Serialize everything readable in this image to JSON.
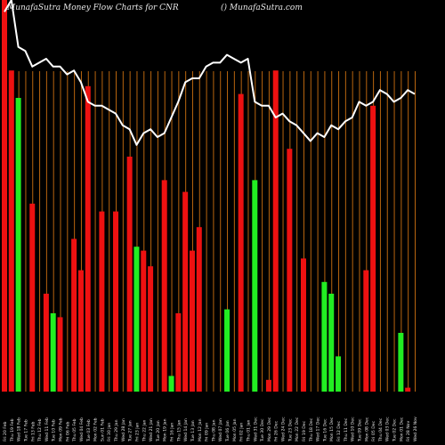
{
  "title": "MunafaSutra  Money Flow  Charts for CNR",
  "subtitle": "() MunafaSutra.com",
  "colors": {
    "background": "#000000",
    "up": "#22ee22",
    "down": "#ee1111",
    "grid": "#b8650f",
    "line": "#ffffff",
    "text": "#e6e6e6"
  },
  "chart_data": {
    "type": "bar",
    "ylim": [
      0,
      100
    ],
    "categories": [
      "Fri 20 Feb",
      "Thu 19 Feb",
      "Wed 18 Feb",
      "Tue 17 Feb",
      "Fri 13 Feb",
      "Thu 12 Feb",
      "Wed 11 Feb",
      "Tue 10 Feb",
      "Mon 09 Feb",
      "Fri 06 Feb",
      "Thu 05 Feb",
      "Wed 04 Feb",
      "Tue 03 Feb",
      "Mon 02 Feb",
      "Sun 01 Feb",
      "Fri 30 Jan",
      "Thu 29 Jan",
      "Wed 28 Jan",
      "Tue 27 Jan",
      "Fri 23 Jan",
      "Thu 22 Jan",
      "Wed 21 Jan",
      "Tue 20 Jan",
      "Mon 19 Jan",
      "Fri 16 Jan",
      "Thu 15 Jan",
      "Wed 14 Jan",
      "Tue 13 Jan",
      "Mon 12 Jan",
      "Fri 09 Jan",
      "Thu 08 Jan",
      "Wed 07 Jan",
      "Tue 06 Jan",
      "Mon 05 Jan",
      "Fri 02 Jan",
      "Thu 01 Jan",
      "Wed 31 Dec",
      "Tue 30 Dec",
      "Mon 29 Dec",
      "Fri 26 Dec",
      "Wed 24 Dec",
      "Tue 23 Dec",
      "Mon 22 Dec",
      "Fri 19 Dec",
      "Thu 18 Dec",
      "Wed 17 Dec",
      "Tue 16 Dec",
      "Mon 15 Dec",
      "Fri 12 Dec",
      "Thu 11 Dec",
      "Wed 10 Dec",
      "Tue 09 Dec",
      "Mon 08 Dec",
      "Fri 05 Dec",
      "Thu 04 Dec",
      "Wed 03 Dec",
      "Tue 02 Dec",
      "Mon 01 Dec",
      "Fri 28 Nov",
      "Wed 26 Nov"
    ],
    "series": [
      {
        "values": [
          100,
          82,
          75,
          0,
          48,
          0,
          25,
          20,
          19,
          0,
          39,
          31,
          78,
          0,
          46,
          0,
          46,
          0,
          60,
          37,
          36,
          32,
          0,
          54,
          4,
          20,
          51,
          36,
          42,
          0,
          0,
          0,
          21,
          0,
          76,
          0,
          54,
          0,
          3,
          82,
          0,
          62,
          0,
          34,
          0,
          0,
          28,
          25,
          9,
          0,
          0,
          0,
          31,
          73,
          0,
          0,
          0,
          15,
          1,
          0
        ],
        "colors": [
          "red",
          "red",
          "green",
          "green",
          "red",
          "red",
          "red",
          "green",
          "red",
          "red",
          "red",
          "red",
          "red",
          "red",
          "red",
          "red",
          "red",
          "red",
          "red",
          "green",
          "red",
          "red",
          "green",
          "red",
          "green",
          "red",
          "red",
          "red",
          "red",
          "green",
          "green",
          "green",
          "green",
          "green",
          "red",
          "green",
          "green",
          "green",
          "red",
          "red",
          "green",
          "red",
          "green",
          "red",
          "green",
          "green",
          "green",
          "green",
          "green",
          "green",
          "green",
          "green",
          "red",
          "red",
          "green",
          "green",
          "red",
          "green",
          "red",
          "red"
        ]
      },
      {
        "values": [
          97,
          100,
          88,
          87,
          83,
          84,
          85,
          83,
          83,
          81,
          82,
          79,
          74,
          73,
          73,
          72,
          71,
          68,
          67,
          63,
          66,
          67,
          65,
          66,
          70,
          74,
          79,
          80,
          80,
          83,
          84,
          84,
          86,
          85,
          84,
          85,
          74,
          73,
          73,
          70,
          71,
          69,
          68,
          66,
          64,
          66,
          65,
          68,
          67,
          69,
          70,
          74,
          73,
          74,
          77,
          76,
          74,
          75,
          77,
          76
        ]
      }
    ]
  }
}
